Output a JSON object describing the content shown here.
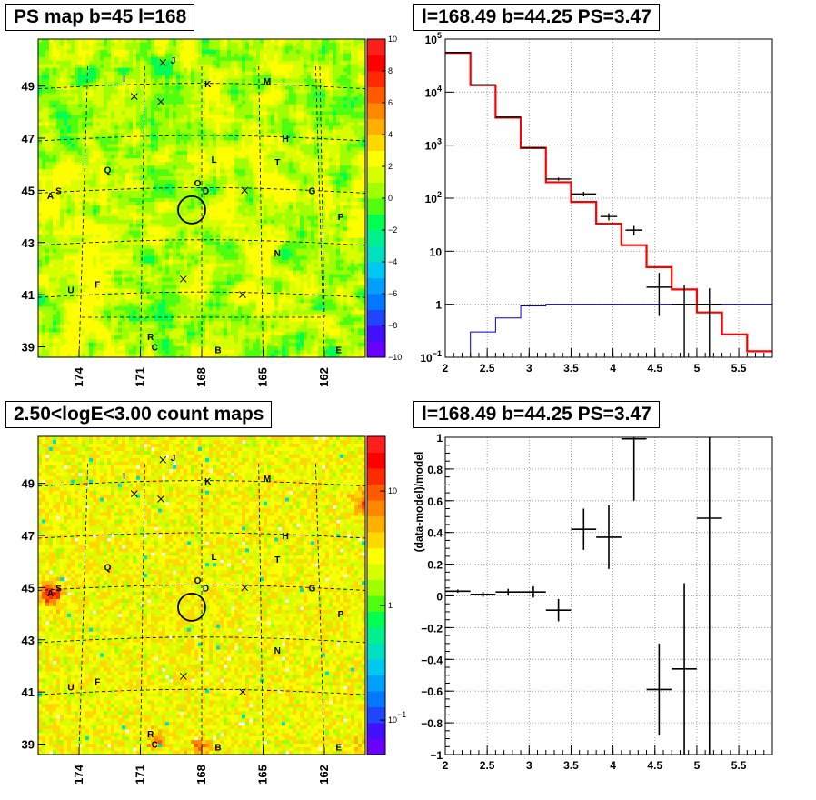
{
  "panels": {
    "ps_map": {
      "title": "PS map b=45 l=168",
      "x_ticks": [
        "174",
        "171",
        "168",
        "165",
        "162"
      ],
      "y_ticks": [
        "49",
        "47",
        "45",
        "43",
        "41",
        "39"
      ],
      "colorbar_ticks": [
        "10",
        "8",
        "6",
        "4",
        "2",
        "0",
        "−2",
        "−4",
        "−6",
        "−8",
        "−10"
      ]
    },
    "spectrum": {
      "title": "l=168.49 b=44.25 PS=3.47",
      "x_ticks": [
        "2",
        "2.5",
        "3",
        "3.5",
        "4",
        "4.5",
        "5",
        "5.5"
      ],
      "y_ticks": [
        {
          "base": "10",
          "exp": "5"
        },
        {
          "base": "10",
          "exp": "4"
        },
        {
          "base": "10",
          "exp": "3"
        },
        {
          "base": "10",
          "exp": "2"
        },
        {
          "base": "10",
          "exp": ""
        },
        {
          "base": "1",
          "exp": ""
        },
        {
          "base": "10",
          "exp": "−1"
        }
      ]
    },
    "count_map": {
      "title": "2.50<logE<3.00 count maps",
      "x_ticks": [
        "174",
        "171",
        "168",
        "165",
        "162"
      ],
      "y_ticks": [
        "49",
        "47",
        "45",
        "43",
        "41",
        "39"
      ],
      "colorbar_ticks": [
        {
          "base": "10",
          "exp": ""
        },
        {
          "base": "1",
          "exp": ""
        },
        {
          "base": "10",
          "exp": "−1"
        }
      ]
    },
    "residual": {
      "title": "l=168.49 b=44.25 PS=3.47",
      "ylabel": "(data-model)/model",
      "x_ticks": [
        "2",
        "2.5",
        "3",
        "3.5",
        "4",
        "4.5",
        "5",
        "5.5"
      ],
      "y_ticks": [
        "1",
        "0.8",
        "0.6",
        "0.4",
        "0.2",
        "0",
        "−0.2",
        "−0.4",
        "−0.6",
        "−0.8",
        "−1"
      ]
    }
  },
  "sky_labels": [
    {
      "text": "J",
      "l": 169.4,
      "b": 50.0
    },
    {
      "text": "I",
      "l": 171.8,
      "b": 49.3
    },
    {
      "text": "K",
      "l": 167.7,
      "b": 49.1
    },
    {
      "text": "M",
      "l": 164.8,
      "b": 49.2
    },
    {
      "text": "H",
      "l": 163.9,
      "b": 47.0
    },
    {
      "text": "L",
      "l": 167.4,
      "b": 46.2
    },
    {
      "text": "T",
      "l": 164.3,
      "b": 46.1
    },
    {
      "text": "Q",
      "l": 172.6,
      "b": 45.8
    },
    {
      "text": "O",
      "l": 168.2,
      "b": 45.3
    },
    {
      "text": "D",
      "l": 167.8,
      "b": 45.0
    },
    {
      "text": "G",
      "l": 162.6,
      "b": 45.0
    },
    {
      "text": "A",
      "l": 175.4,
      "b": 44.8
    },
    {
      "text": "S",
      "l": 175.0,
      "b": 45.0
    },
    {
      "text": "P",
      "l": 161.2,
      "b": 44.0
    },
    {
      "text": "N",
      "l": 164.3,
      "b": 42.6
    },
    {
      "text": "F",
      "l": 173.1,
      "b": 41.4
    },
    {
      "text": "U",
      "l": 174.4,
      "b": 41.2
    },
    {
      "text": "R",
      "l": 170.5,
      "b": 39.4
    },
    {
      "text": "C",
      "l": 170.3,
      "b": 39.0
    },
    {
      "text": "B",
      "l": 167.2,
      "b": 38.9
    },
    {
      "text": "E",
      "l": 161.3,
      "b": 38.9
    }
  ],
  "sky_crosses": [
    {
      "l": 169.9,
      "b": 49.9
    },
    {
      "l": 171.3,
      "b": 48.6
    },
    {
      "l": 170.0,
      "b": 48.4
    },
    {
      "l": 165.9,
      "b": 45.0
    },
    {
      "l": 168.9,
      "b": 41.6
    },
    {
      "l": 166.0,
      "b": 41.0
    }
  ],
  "source_circle": {
    "l": 168.49,
    "b": 44.25
  },
  "chart_data": [
    {
      "type": "heatmap",
      "name": "ps-map",
      "title": "PS map b=45 l=168",
      "xlim": [
        176,
        160
      ],
      "ylim": [
        38.6,
        50.8
      ],
      "zlim": [
        -10,
        10
      ]
    },
    {
      "type": "line",
      "title": "l=168.49 b=44.25 PS=3.47",
      "xlim": [
        2,
        5.9
      ],
      "ylim": [
        0.1,
        100000
      ],
      "yscale": "log",
      "grid": true,
      "model_total": {
        "edges": [
          2.0,
          2.3,
          2.6,
          2.9,
          3.2,
          3.5,
          3.8,
          4.1,
          4.4,
          4.7,
          5.0,
          5.3,
          5.6,
          5.9
        ],
        "values": [
          55000,
          13500,
          3300,
          880,
          200,
          85,
          33,
          13,
          5,
          1.9,
          0.7,
          0.27,
          0.13
        ]
      },
      "model_source": {
        "edges": [
          2.0,
          2.3,
          2.6,
          2.9,
          3.2,
          3.5,
          3.8,
          4.1,
          4.4,
          4.7,
          5.0,
          5.3,
          5.6,
          5.9
        ],
        "values": [
          0.1,
          0.3,
          0.55,
          0.93,
          1.0,
          1.0,
          1.0,
          1.0,
          1.0,
          1.0,
          1.0,
          1.0,
          1.0
        ]
      },
      "data_points": [
        {
          "x": 2.15,
          "y": 56000,
          "xerr": 0.15,
          "ylo": 55500,
          "yhi": 56500
        },
        {
          "x": 2.45,
          "y": 13700,
          "xerr": 0.15,
          "ylo": 13500,
          "yhi": 13900
        },
        {
          "x": 2.75,
          "y": 3380,
          "xerr": 0.15,
          "ylo": 3320,
          "yhi": 3440
        },
        {
          "x": 3.05,
          "y": 900,
          "xerr": 0.15,
          "ylo": 870,
          "yhi": 930
        },
        {
          "x": 3.35,
          "y": 230,
          "xerr": 0.15,
          "ylo": 215,
          "yhi": 245
        },
        {
          "x": 3.65,
          "y": 120,
          "xerr": 0.15,
          "ylo": 108,
          "yhi": 132
        },
        {
          "x": 3.95,
          "y": 45,
          "xerr": 0.1,
          "ylo": 38,
          "yhi": 52
        },
        {
          "x": 4.25,
          "y": 25,
          "xerr": 0.1,
          "ylo": 20,
          "yhi": 30
        },
        {
          "x": 4.55,
          "y": 2.1,
          "xerr": 0.15,
          "ylo": 0.6,
          "yhi": 3.9
        },
        {
          "x": 4.85,
          "y": 1.0,
          "xerr": 0.15,
          "ylo": 0.1,
          "yhi": 2.3
        },
        {
          "x": 5.15,
          "y": 1.0,
          "xerr": 0.15,
          "ylo": 0.1,
          "yhi": 2.0
        }
      ]
    },
    {
      "type": "heatmap",
      "name": "count-map",
      "title": "2.50<logE<3.00 count maps",
      "xlim": [
        176,
        160
      ],
      "ylim": [
        38.6,
        50.8
      ],
      "zscale": "log",
      "zlim": [
        0.05,
        30
      ]
    },
    {
      "type": "scatter",
      "title": "l=168.49 b=44.25 PS=3.47",
      "ylabel": "(data-model)/model",
      "xlim": [
        2,
        5.9
      ],
      "ylim": [
        -1,
        1
      ],
      "grid": true,
      "points": [
        {
          "x": 2.15,
          "y": 0.03,
          "xerr": 0.15,
          "ylo": 0.02,
          "yhi": 0.04
        },
        {
          "x": 2.45,
          "y": 0.01,
          "xerr": 0.15,
          "ylo": -0.005,
          "yhi": 0.025
        },
        {
          "x": 2.75,
          "y": 0.025,
          "xerr": 0.15,
          "ylo": 0.005,
          "yhi": 0.045
        },
        {
          "x": 3.05,
          "y": 0.025,
          "xerr": 0.15,
          "ylo": -0.01,
          "yhi": 0.06
        },
        {
          "x": 3.35,
          "y": -0.09,
          "xerr": 0.15,
          "ylo": -0.16,
          "yhi": -0.02
        },
        {
          "x": 3.65,
          "y": 0.42,
          "xerr": 0.15,
          "ylo": 0.29,
          "yhi": 0.55
        },
        {
          "x": 3.95,
          "y": 0.37,
          "xerr": 0.15,
          "ylo": 0.17,
          "yhi": 0.57
        },
        {
          "x": 4.25,
          "y": 0.99,
          "xerr": 0.15,
          "ylo": 0.6,
          "yhi": 1.0
        },
        {
          "x": 4.55,
          "y": -0.59,
          "xerr": 0.15,
          "ylo": -0.88,
          "yhi": -0.3
        },
        {
          "x": 4.85,
          "y": -0.46,
          "xerr": 0.15,
          "ylo": -1.0,
          "yhi": 0.08
        },
        {
          "x": 5.15,
          "y": 0.49,
          "xerr": 0.15,
          "ylo": -1.0,
          "yhi": 1.0
        }
      ]
    }
  ]
}
